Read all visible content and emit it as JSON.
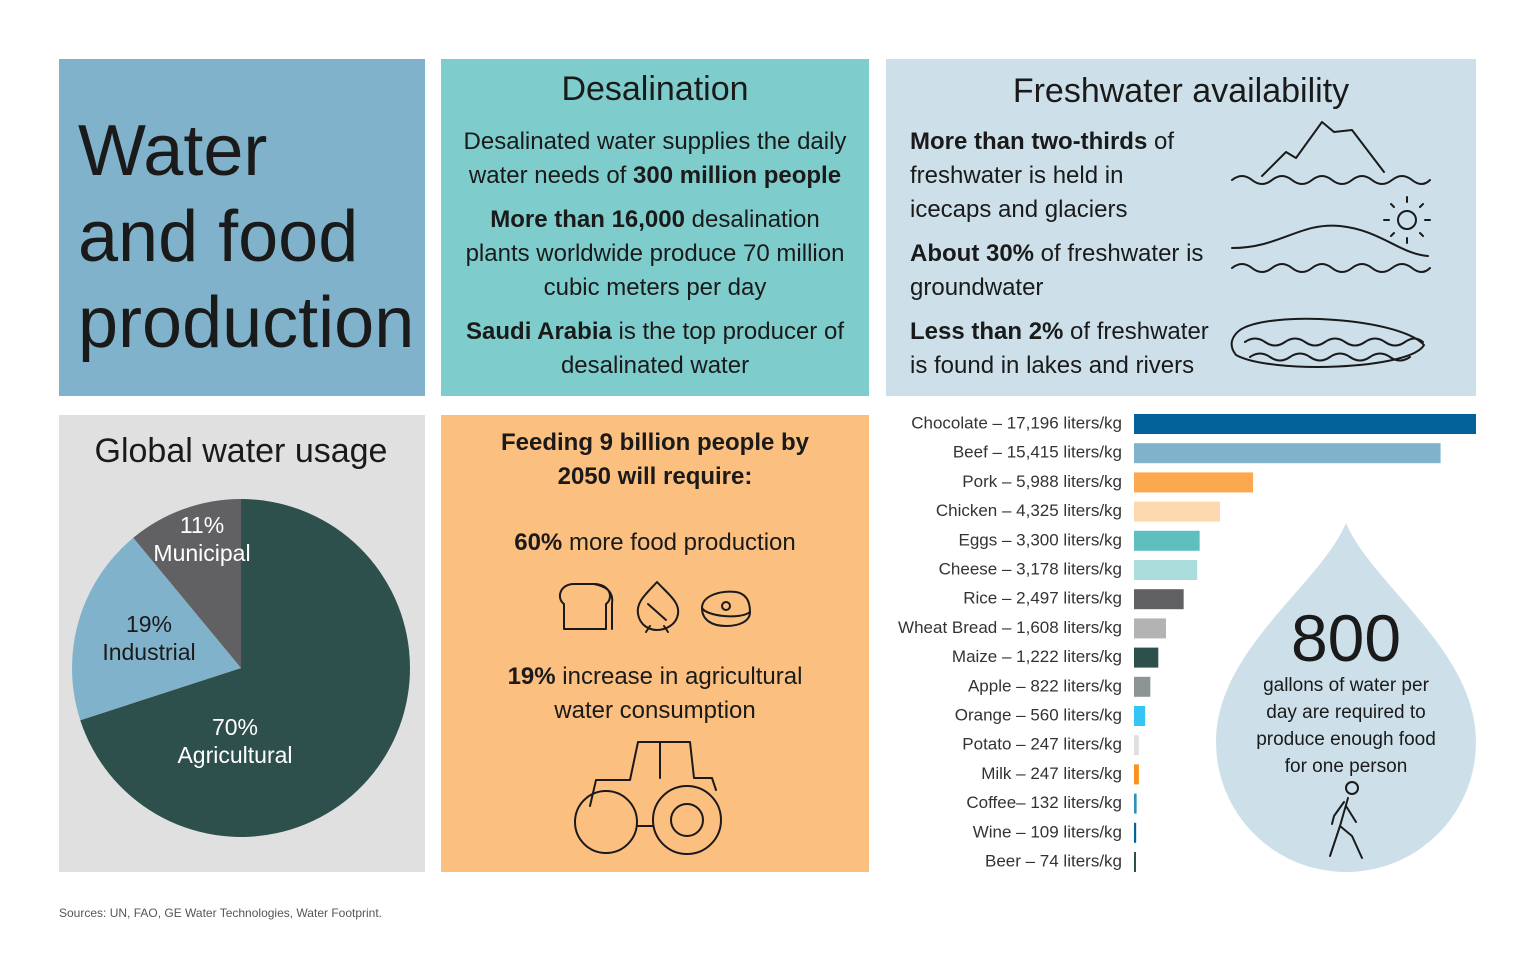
{
  "title_lines": [
    "Water",
    "and food",
    "production"
  ],
  "desalination": {
    "heading": "Desalination",
    "paragraphs": [
      [
        {
          "text": "Desalinated water supplies the daily water needs of ",
          "bold": false
        },
        {
          "text": "300 million people",
          "bold": true
        }
      ],
      [
        {
          "text": "More than 16,000",
          "bold": true
        },
        {
          "text": " desalination plants worldwide produce 70 million cubic meters per day",
          "bold": false
        }
      ],
      [
        {
          "text": "Saudi Arabia",
          "bold": true
        },
        {
          "text": " is the top producer of desalinated water",
          "bold": false
        }
      ]
    ]
  },
  "freshwater": {
    "heading": "Freshwater availability",
    "items": [
      [
        {
          "text": "More than two-thirds",
          "bold": true
        },
        {
          "text": " of freshwater is held in icecaps and glaciers",
          "bold": false
        }
      ],
      [
        {
          "text": "About 30%",
          "bold": true
        },
        {
          "text": " of freshwater is groundwater",
          "bold": false
        }
      ],
      [
        {
          "text": "Less than 2%",
          "bold": true
        },
        {
          "text": " of freshwater is found in lakes and rivers",
          "bold": false
        }
      ]
    ]
  },
  "feeding": {
    "heading": "Feeding 9 billion people by 2050 will require:",
    "items": [
      [
        {
          "text": "60%",
          "bold": true
        },
        {
          "text": " more food production",
          "bold": false
        }
      ],
      [
        {
          "text": "19%",
          "bold": true
        },
        {
          "text": " increase in agricultural water consumption",
          "bold": false
        }
      ]
    ]
  },
  "drop": {
    "number": "800",
    "caption": "gallons of water per day are required to produce enough food for one person"
  },
  "sources": "Sources: UN, FAO, GE Water Technologies, Water Footprint.",
  "chart_data": [
    {
      "type": "pie",
      "title": "Global water usage",
      "categories": [
        "Agricultural",
        "Industrial",
        "Municipal"
      ],
      "values": [
        70,
        19,
        11
      ],
      "value_labels": [
        "70%",
        "19%",
        "11%"
      ],
      "colors": [
        "#2d504d",
        "#80b3cb",
        "#616063"
      ]
    },
    {
      "type": "bar",
      "categories": [
        "Chocolate – 17,196 liters/kg",
        "Beef – 15,415 liters/kg",
        "Pork – 5,988 liters/kg",
        "Chicken – 4,325 liters/kg",
        "Eggs – 3,300 liters/kg",
        "Cheese – 3,178 liters/kg",
        "Rice – 2,497 liters/kg",
        "Wheat Bread – 1,608 liters/kg",
        "Maize – 1,222 liters/kg",
        "Apple – 822 liters/kg",
        "Orange – 560 liters/kg",
        "Potato – 247 liters/kg",
        "Milk – 247 liters/kg",
        "Coffee– 132 liters/kg",
        "Wine – 109 liters/kg",
        "Beer – 74 liters/kg"
      ],
      "values": [
        17196,
        15415,
        5988,
        4325,
        3300,
        3178,
        2497,
        1608,
        1222,
        822,
        560,
        247,
        247,
        132,
        109,
        74
      ],
      "colors": [
        "#04629a",
        "#80b3cb",
        "#fba84f",
        "#fdd9b0",
        "#5fbfbf",
        "#aadcdc",
        "#616063",
        "#b3b3b3",
        "#2d504d",
        "#8a9594",
        "#33c6f4",
        "#e0e0e0",
        "#f7921e",
        "#2f8fbf",
        "#04629a",
        "#2d504d"
      ]
    }
  ]
}
